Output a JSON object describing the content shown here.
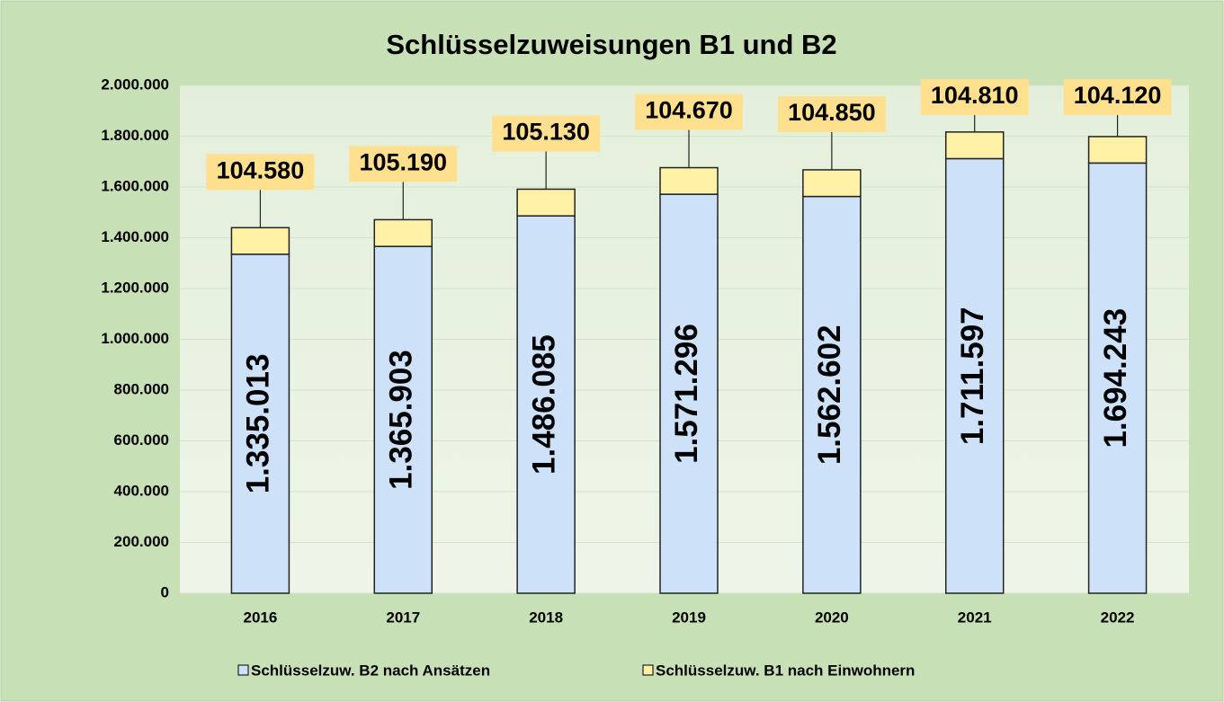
{
  "chart_data": {
    "type": "stacked_bar",
    "title": "Schlüsselzuweisungen B1 und B2",
    "categories": [
      "2016",
      "2017",
      "2018",
      "2019",
      "2020",
      "2021",
      "2022"
    ],
    "series": [
      {
        "name": "Schlüsselzuw. B2 nach Ansätzen",
        "color": "#cde1f8",
        "values": [
          1335013,
          1365903,
          1486085,
          1571296,
          1562602,
          1711597,
          1694243
        ],
        "value_labels": [
          "1.335.013",
          "1.365.903",
          "1.486.085",
          "1.571.296",
          "1.562.602",
          "1.711.597",
          "1.694.243"
        ]
      },
      {
        "name": "Schlüsselzuw. B1 nach Einwohnern",
        "color": "#fff2a6",
        "values": [
          104580,
          105190,
          105130,
          104670,
          104850,
          104810,
          104120
        ],
        "value_labels": [
          "104.580",
          "105.190",
          "105.130",
          "104.670",
          "104.850",
          "104.810",
          "104.120"
        ]
      }
    ],
    "ylim": [
      0,
      2000000
    ],
    "yticks": [
      0,
      {
        "value": 200000,
        "label": "200.000"
      },
      {
        "value": 400000,
        "label": "400.000"
      },
      {
        "value": 600000,
        "label": "600.000"
      },
      {
        "value": 800000,
        "label": "800.000"
      },
      {
        "value": 1000000,
        "label": "1.000.000"
      },
      {
        "value": 1200000,
        "label": "1.200.000"
      },
      {
        "value": 1400000,
        "label": "1.400.000"
      },
      {
        "value": 1600000,
        "label": "1.600.000"
      },
      {
        "value": 1800000,
        "label": "1.800.000"
      },
      {
        "value": 2000000,
        "label": "2.000.000"
      }
    ],
    "grid": true,
    "legend": "bottom"
  }
}
